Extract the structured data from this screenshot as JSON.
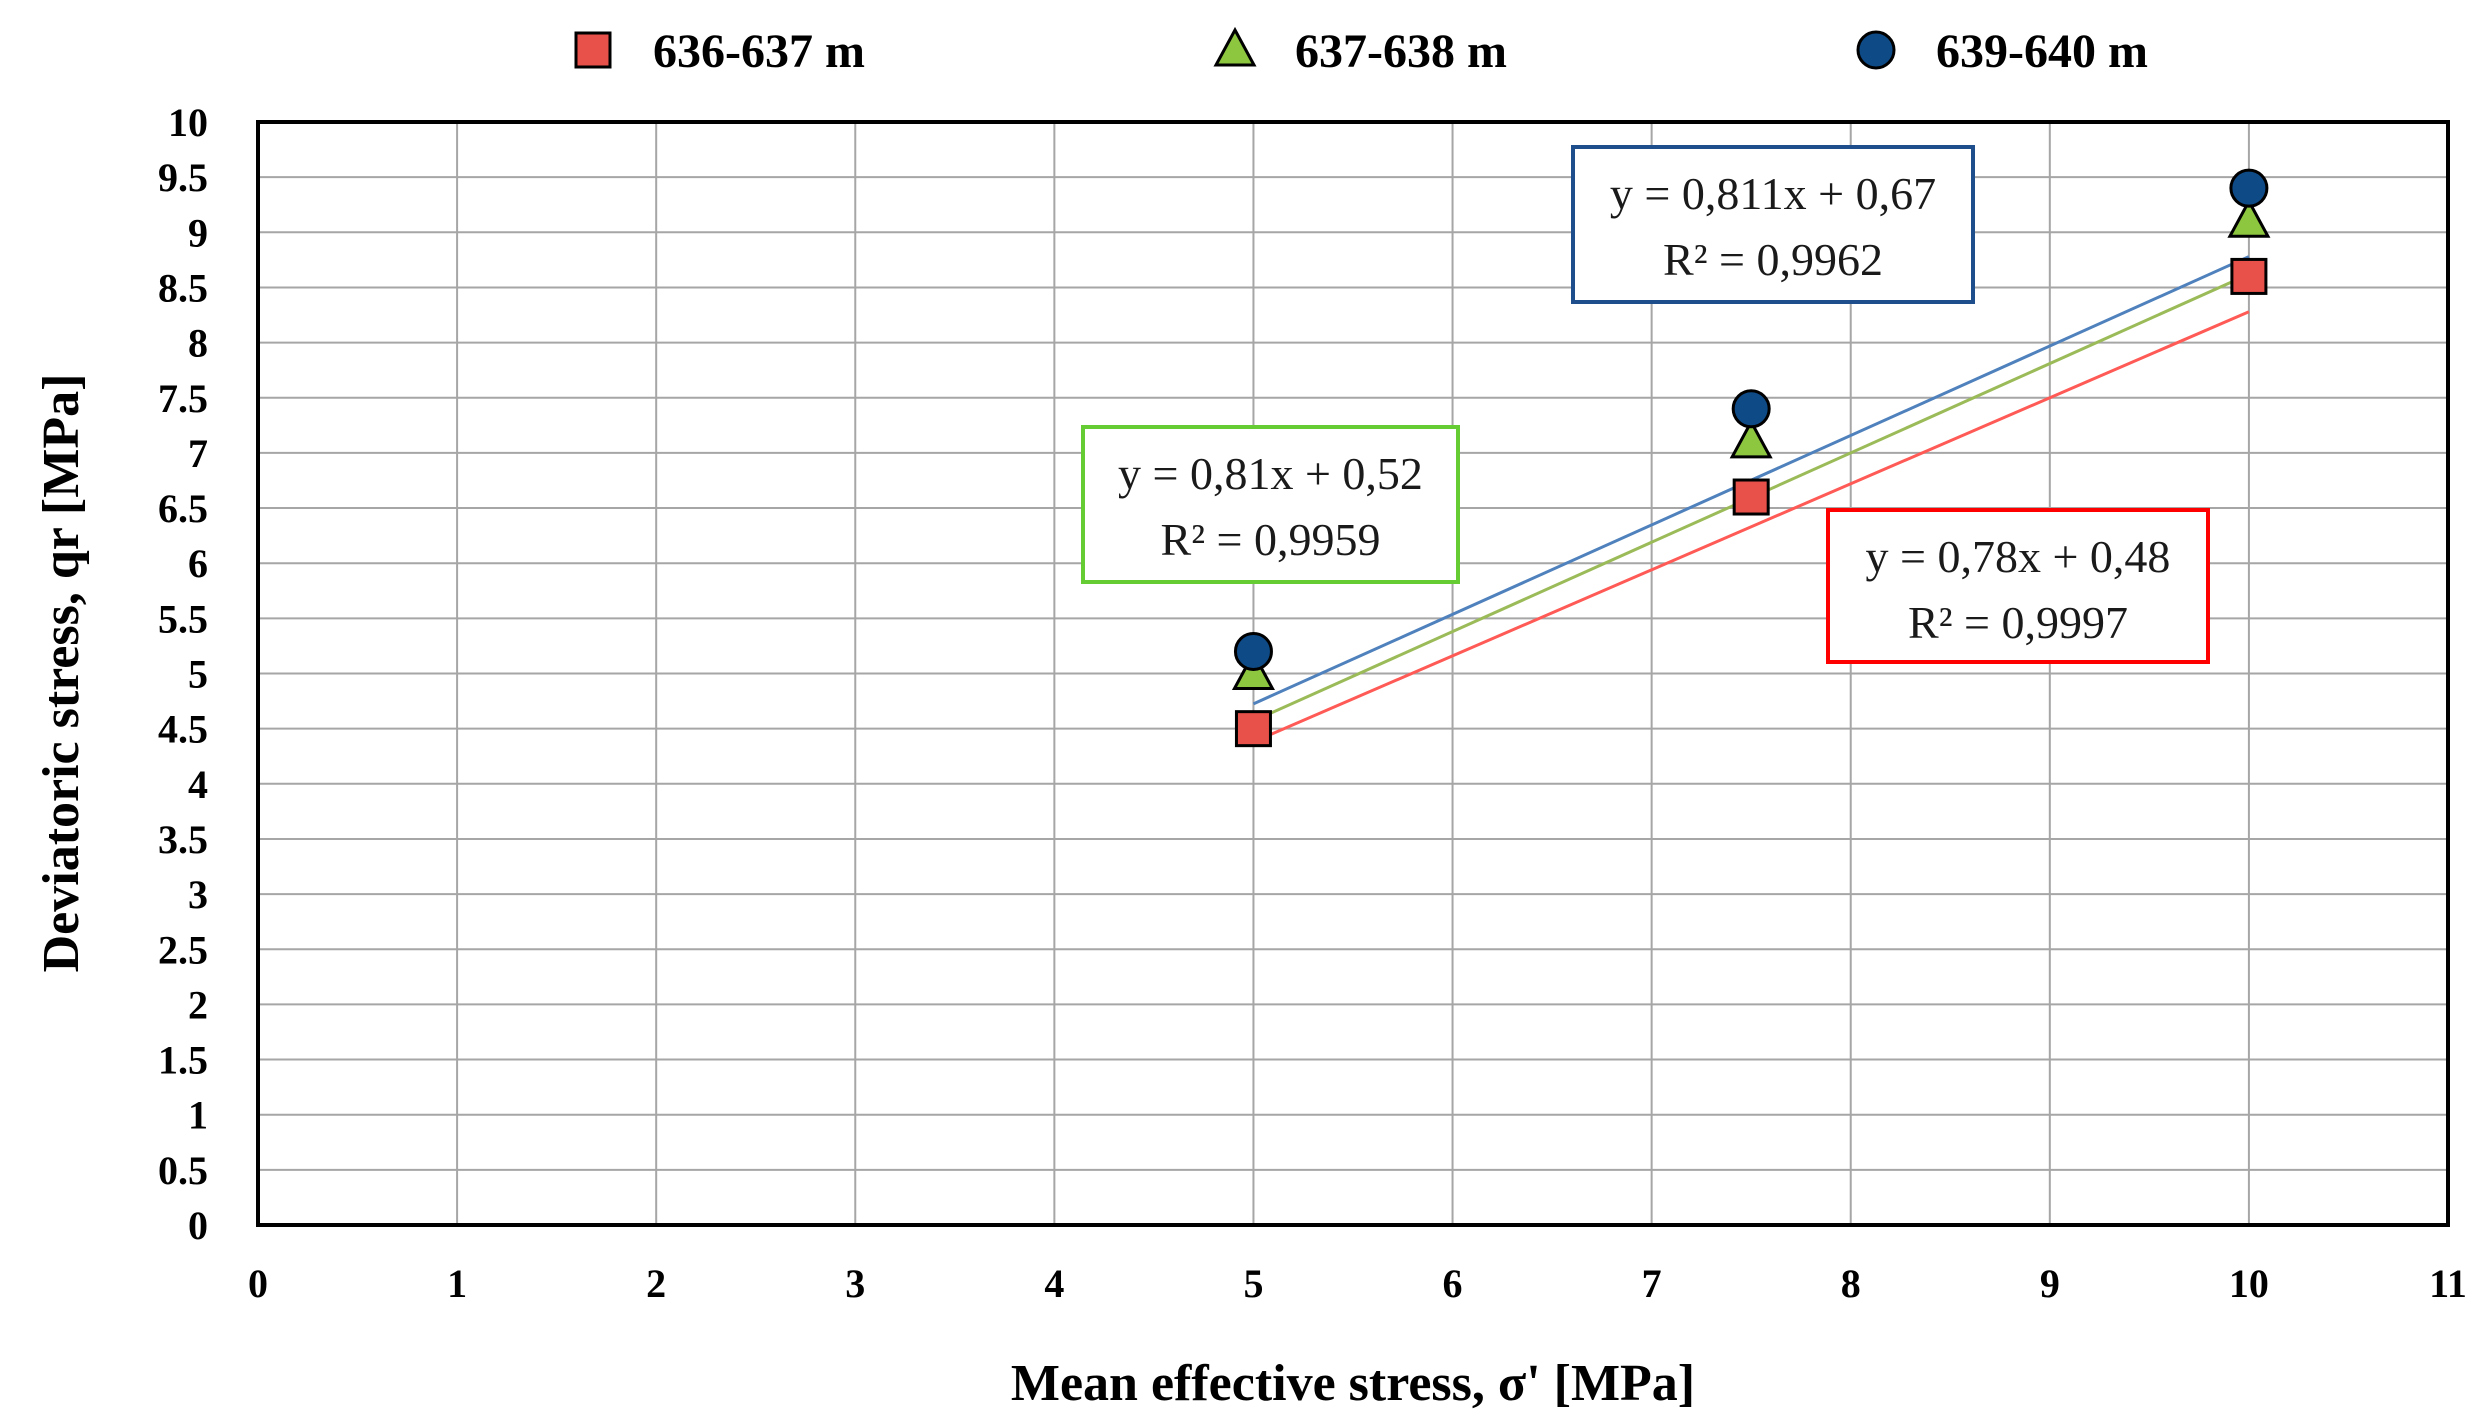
{
  "chart_data": {
    "type": "scatter",
    "xlabel": "Mean effective stress, σ' [MPa]",
    "ylabel": "Deviatoric stress, qr [MPa]",
    "xlim": [
      0,
      11
    ],
    "ylim": [
      0,
      10
    ],
    "x_ticks": [
      0,
      1,
      2,
      3,
      4,
      5,
      6,
      7,
      8,
      9,
      10,
      11
    ],
    "x_tick_labels": [
      "0",
      "1",
      "2",
      "3",
      "4",
      "5",
      "6",
      "7",
      "8",
      "9",
      "10",
      "11"
    ],
    "y_ticks": [
      0,
      0.5,
      1,
      1.5,
      2,
      2.5,
      3,
      3.5,
      4,
      4.5,
      5,
      5.5,
      6,
      6.5,
      7,
      7.5,
      8,
      8.5,
      9,
      9.5,
      10
    ],
    "y_tick_labels": [
      "0",
      "0.5",
      "1",
      "1.5",
      "2",
      "2.5",
      "3",
      "3.5",
      "4",
      "4.5",
      "5",
      "5.5",
      "6",
      "6.5",
      "7",
      "7.5",
      "8",
      "8.5",
      "9",
      "9.5",
      "10"
    ],
    "grid": true,
    "legend_position": "top",
    "series": [
      {
        "name": "636-637 m",
        "marker": "square",
        "color": "#e8504a",
        "line_color": "#ff5a55",
        "x": [
          5,
          7.5,
          10
        ],
        "y": [
          4.5,
          6.6,
          8.6
        ],
        "trendline": {
          "slope": 0.78,
          "intercept": 0.48,
          "equation": "y = 0,78x + 0,48",
          "r2": "R² = 0,9997",
          "box_color": "#ff0000"
        }
      },
      {
        "name": "637-638 m",
        "marker": "triangle",
        "color": "#8dc63f",
        "line_color": "#9bbb59",
        "x": [
          5,
          7.5,
          10
        ],
        "y": [
          5.0,
          7.1,
          9.1
        ],
        "trendline": {
          "slope": 0.81,
          "intercept": 0.52,
          "equation": "y = 0,81x + 0,52",
          "r2": "R² = 0,9959",
          "box_color": "#66cc33"
        }
      },
      {
        "name": "639-640 m",
        "marker": "circle",
        "color": "#0e4a86",
        "line_color": "#4f81bd",
        "x": [
          5,
          7.5,
          10
        ],
        "y": [
          5.2,
          7.4,
          9.4
        ],
        "trendline": {
          "slope": 0.811,
          "intercept": 0.67,
          "equation": "y = 0,811x + 0,67",
          "r2": "R² = 0,9962",
          "box_color": "#1f4e8c"
        }
      }
    ]
  }
}
